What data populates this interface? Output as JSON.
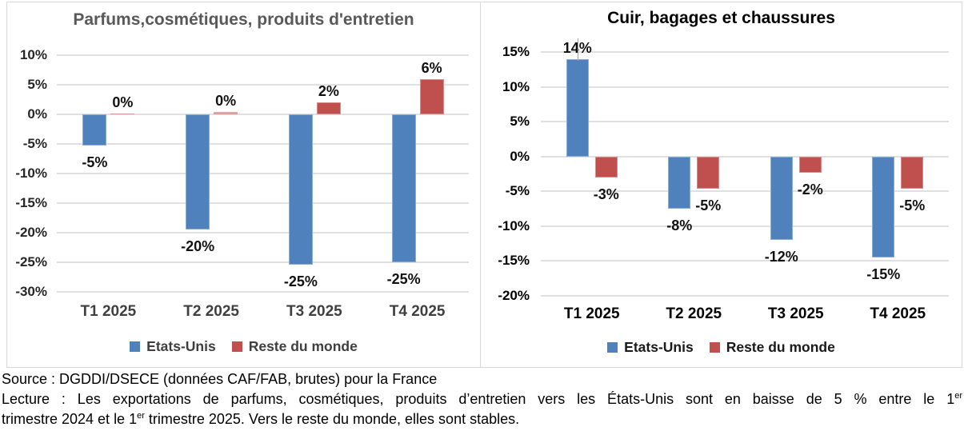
{
  "chart_data": [
    {
      "type": "bar",
      "title": "Parfums,cosmétiques, produits d'entretien",
      "categories": [
        "T1 2025",
        "T2 2025",
        "T3 2025",
        "T4 2025"
      ],
      "series": [
        {
          "name": "Etats-Unis",
          "color": "#4F81BD",
          "values": [
            -5.3,
            -19.5,
            -25.4,
            -25.0
          ],
          "labels": [
            "-5%",
            "-20%",
            "-25%",
            "-25%"
          ]
        },
        {
          "name": "Reste du monde",
          "color": "#C0504D",
          "values": [
            0.2,
            0.4,
            2.0,
            6.0
          ],
          "labels": [
            "0%",
            "0%",
            "2%",
            "6%"
          ]
        }
      ],
      "ylim": [
        -30,
        10
      ],
      "ytick_step": 5,
      "ytick_format": "percent",
      "grid": true,
      "legend_position": "bottom"
    },
    {
      "type": "bar",
      "title": "Cuir, bagages et chaussures",
      "categories": [
        "T1 2025",
        "T2 2025",
        "T3 2025",
        "T4 2025"
      ],
      "series": [
        {
          "name": "Etats-Unis",
          "color": "#4F81BD",
          "values": [
            14.0,
            -7.5,
            -12.0,
            -14.5
          ],
          "labels": [
            "14%",
            "-8%",
            "-12%",
            "-15%"
          ]
        },
        {
          "name": "Reste du monde",
          "color": "#C0504D",
          "values": [
            -3.0,
            -4.6,
            -2.3,
            -4.6
          ],
          "labels": [
            "-3%",
            "-5%",
            "-2%",
            "-5%"
          ]
        }
      ],
      "ylim": [
        -20,
        15
      ],
      "ytick_step": 5,
      "ytick_format": "percent",
      "grid": true,
      "legend_position": "bottom"
    }
  ],
  "colors": {
    "series_blue": "#4F81BD",
    "series_red": "#C0504D",
    "gridline": "#e0e0e0",
    "left_title": "#595959"
  },
  "footer": {
    "source_line": "Source : DGDDI/DSECE (données CAF/FAB, brutes) pour la France",
    "lecture_line1_pre": "Lecture : Les exportations de parfums, cosmétiques, produits d’entretien vers les États-Unis sont en baisse de 5 % entre le 1",
    "lecture_line1_sup": "er",
    "lecture_line2_pre": "trimestre 2024 et le 1",
    "lecture_line2_sup": "er",
    "lecture_line2_post": " trimestre 2025. Vers le reste du monde, elles sont stables."
  }
}
